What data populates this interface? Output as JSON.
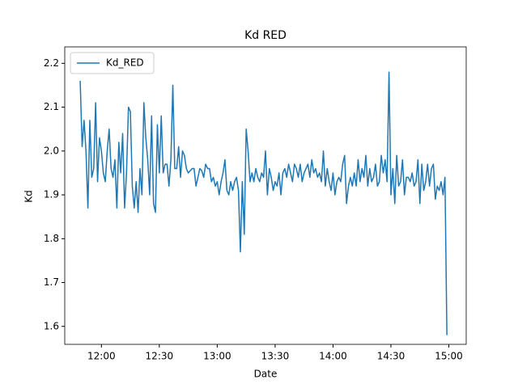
{
  "chart_data": {
    "type": "line",
    "title": "Kd RED",
    "xlabel": "Date",
    "ylabel": "Kd",
    "legend": "upper left",
    "xlim": [
      "11:41",
      "15:09"
    ],
    "xticks": [
      "12:00",
      "12:30",
      "13:00",
      "13:30",
      "14:00",
      "14:30",
      "15:00"
    ],
    "ylim": [
      1.559,
      2.2375
    ],
    "yticks": [
      1.6,
      1.7,
      1.8,
      1.9,
      {
        "value": 2,
        "label": "2.0"
      },
      2.1,
      2.2
    ],
    "x": [
      "11:49",
      "11:50",
      "11:51",
      "11:52",
      "11:53",
      "11:54",
      "11:55",
      "11:56",
      "11:57",
      "11:58",
      "11:59",
      "12:00",
      "12:01",
      "12:02",
      "12:03",
      "12:04",
      "12:05",
      "12:06",
      "12:07",
      "12:08",
      "12:09",
      "12:10",
      "12:11",
      "12:12",
      "12:13",
      "12:14",
      "12:15",
      "12:16",
      "12:17",
      "12:18",
      "12:19",
      "12:20",
      "12:21",
      "12:22",
      "12:23",
      "12:24",
      "12:25",
      "12:26",
      "12:27",
      "12:28",
      "12:29",
      "12:30",
      "12:31",
      "12:32",
      "12:33",
      "12:34",
      "12:35",
      "12:36",
      "12:37",
      "12:38",
      "12:39",
      "12:40",
      "12:41",
      "12:42",
      "12:43",
      "12:44",
      "12:45",
      "12:46",
      "12:47",
      "12:48",
      "12:49",
      "12:50",
      "12:51",
      "12:52",
      "12:53",
      "12:54",
      "12:55",
      "12:56",
      "12:57",
      "12:58",
      "12:59",
      "13:00",
      "13:01",
      "13:02",
      "13:03",
      "13:04",
      "13:05",
      "13:06",
      "13:07",
      "13:08",
      "13:09",
      "13:10",
      "13:11",
      "13:12",
      "13:13",
      "13:14",
      "13:15",
      "13:16",
      "13:17",
      "13:18",
      "13:19",
      "13:20",
      "13:21",
      "13:22",
      "13:23",
      "13:24",
      "13:25",
      "13:26",
      "13:27",
      "13:28",
      "13:29",
      "13:30",
      "13:31",
      "13:32",
      "13:33",
      "13:34",
      "13:35",
      "13:36",
      "13:37",
      "13:38",
      "13:39",
      "13:40",
      "13:41",
      "13:42",
      "13:43",
      "13:44",
      "13:45",
      "13:46",
      "13:47",
      "13:48",
      "13:49",
      "13:50",
      "13:51",
      "13:52",
      "13:53",
      "13:54",
      "13:55",
      "13:56",
      "13:57",
      "13:58",
      "13:59",
      "14:00",
      "14:01",
      "14:02",
      "14:03",
      "14:04",
      "14:05",
      "14:06",
      "14:07",
      "14:08",
      "14:09",
      "14:10",
      "14:11",
      "14:12",
      "14:13",
      "14:14",
      "14:15",
      "14:16",
      "14:17",
      "14:18",
      "14:19",
      "14:20",
      "14:21",
      "14:22",
      "14:23",
      "14:24",
      "14:25",
      "14:26",
      "14:27",
      "14:28",
      "14:29",
      "14:30",
      "14:31",
      "14:32",
      "14:33",
      "14:34",
      "14:35",
      "14:36",
      "14:37",
      "14:38",
      "14:39",
      "14:40",
      "14:41",
      "14:42",
      "14:43",
      "14:44",
      "14:45",
      "14:46",
      "14:47",
      "14:48",
      "14:49",
      "14:50",
      "14:51",
      "14:52",
      "14:53",
      "14:54",
      "14:55",
      "14:56",
      "14:57",
      "14:58",
      "14:59"
    ],
    "series": [
      {
        "name": "Kd_RED",
        "color": "#1f77b4",
        "values": [
          2.16,
          2.01,
          2.07,
          2.0,
          1.87,
          2.07,
          1.94,
          1.96,
          2.11,
          1.93,
          2.03,
          2.0,
          1.95,
          1.93,
          2.0,
          2.05,
          1.96,
          1.94,
          1.98,
          1.87,
          2.02,
          1.95,
          2.04,
          1.87,
          1.95,
          2.1,
          2.09,
          1.92,
          1.87,
          1.93,
          1.86,
          1.96,
          1.9,
          2.11,
          2.03,
          1.98,
          1.9,
          2.08,
          1.88,
          1.86,
          2.06,
          1.95,
          2.08,
          1.95,
          1.97,
          1.97,
          1.92,
          1.98,
          2.15,
          1.96,
          1.96,
          2.01,
          1.94,
          2.0,
          1.99,
          1.96,
          1.95,
          1.955,
          1.96,
          1.96,
          1.92,
          1.94,
          1.96,
          1.955,
          1.94,
          1.97,
          1.96,
          1.96,
          1.93,
          1.94,
          1.92,
          1.93,
          1.9,
          1.93,
          1.95,
          1.98,
          1.91,
          1.9,
          1.93,
          1.91,
          1.93,
          1.94,
          1.91,
          1.77,
          1.93,
          1.81,
          2.05,
          2.0,
          1.93,
          1.95,
          1.93,
          1.96,
          1.94,
          1.93,
          1.95,
          1.94,
          2.0,
          1.9,
          1.96,
          1.94,
          1.91,
          1.93,
          1.92,
          1.95,
          1.9,
          1.95,
          1.96,
          1.94,
          1.97,
          1.95,
          1.93,
          1.97,
          1.96,
          1.94,
          1.97,
          1.93,
          1.95,
          1.96,
          1.97,
          1.94,
          1.98,
          1.95,
          1.96,
          1.94,
          1.95,
          1.93,
          2.0,
          1.92,
          1.96,
          1.93,
          1.91,
          1.95,
          1.9,
          1.93,
          1.94,
          1.93,
          1.97,
          1.99,
          1.88,
          1.92,
          1.94,
          1.92,
          1.95,
          1.92,
          1.98,
          1.93,
          1.96,
          1.94,
          1.99,
          1.92,
          1.96,
          1.93,
          1.94,
          1.97,
          1.92,
          1.93,
          1.99,
          1.95,
          1.98,
          1.93,
          2.18,
          1.9,
          1.96,
          1.88,
          1.99,
          1.92,
          1.93,
          1.98,
          1.9,
          1.94,
          1.94,
          1.93,
          1.95,
          1.92,
          1.93,
          1.98,
          1.88,
          1.97,
          1.91,
          1.93,
          1.97,
          1.92,
          1.96,
          1.97,
          1.89,
          1.92,
          1.91,
          1.93,
          1.9,
          1.94,
          1.58
        ]
      }
    ]
  }
}
